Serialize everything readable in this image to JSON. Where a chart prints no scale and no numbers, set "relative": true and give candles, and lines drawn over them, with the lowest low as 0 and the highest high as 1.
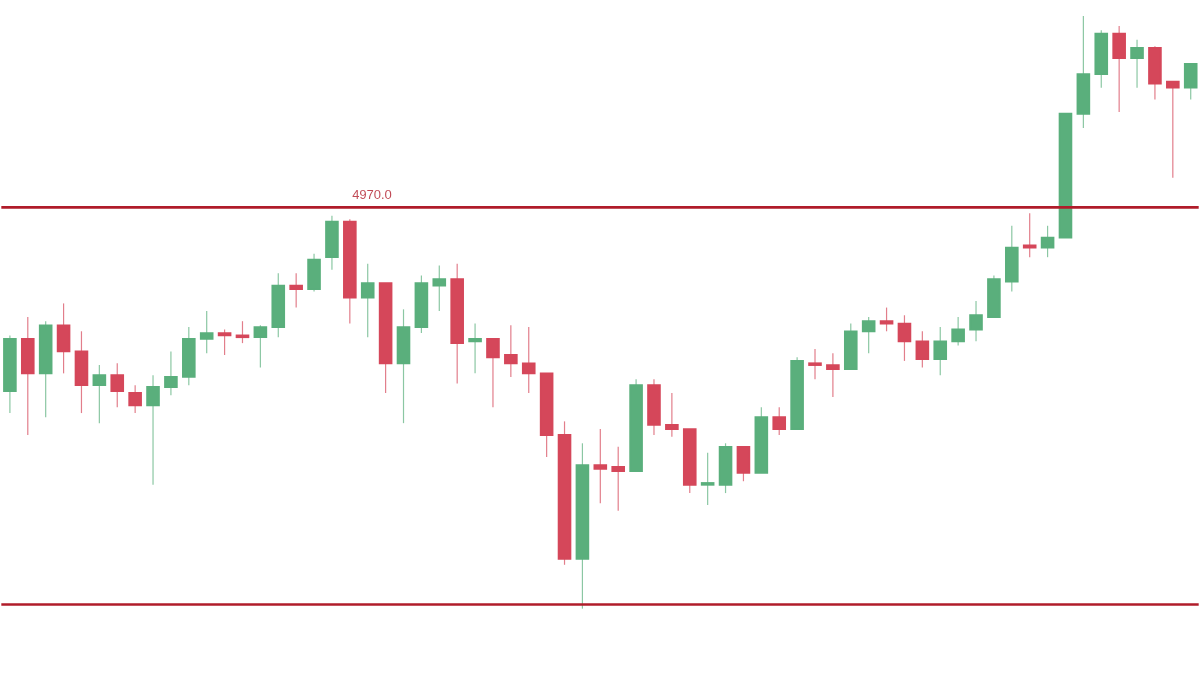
{
  "chart_data": {
    "type": "candlestick",
    "relative": true,
    "categories": [
      null,
      null,
      null,
      null,
      null,
      null,
      null,
      null,
      null,
      null,
      null,
      null,
      null,
      null,
      null,
      null,
      null,
      null,
      null,
      null,
      null,
      null,
      null,
      null,
      null,
      null,
      null,
      null,
      null,
      null,
      null,
      null,
      null,
      null,
      null,
      null,
      null,
      null,
      null,
      null,
      null,
      null,
      null,
      null,
      null,
      null,
      null,
      null,
      null,
      null,
      null,
      null,
      null,
      null,
      null,
      null,
      null,
      null,
      null,
      null,
      null,
      null,
      null,
      null,
      null,
      null,
      null
    ],
    "ohlc": [
      [
        0.367,
        0.461,
        0.33,
        0.455
      ],
      [
        0.455,
        0.492,
        0.293,
        0.397
      ],
      [
        0.397,
        0.485,
        0.323,
        0.478
      ],
      [
        0.478,
        0.515,
        0.397,
        0.434
      ],
      [
        0.434,
        0.468,
        0.33,
        0.377
      ],
      [
        0.377,
        0.411,
        0.313,
        0.394
      ],
      [
        0.394,
        0.414,
        0.34,
        0.367
      ],
      [
        0.364,
        0.377,
        0.33,
        0.343
      ],
      [
        0.343,
        0.394,
        0.209,
        0.374
      ],
      [
        0.374,
        0.434,
        0.36,
        0.391
      ],
      [
        0.391,
        0.475,
        0.377,
        0.455
      ],
      [
        0.455,
        0.502,
        0.431,
        0.465
      ],
      [
        0.465,
        0.471,
        0.428,
        0.461
      ],
      [
        0.461,
        0.485,
        0.448,
        0.458
      ],
      [
        0.458,
        0.478,
        0.407,
        0.475
      ],
      [
        0.475,
        0.566,
        0.458,
        0.545
      ],
      [
        0.545,
        0.566,
        0.508,
        0.539
      ],
      [
        0.539,
        0.599,
        0.535,
        0.589
      ],
      [
        0.593,
        0.663,
        0.572,
        0.653
      ],
      [
        0.653,
        0.657,
        0.481,
        0.525
      ],
      [
        0.525,
        0.582,
        0.458,
        0.549
      ],
      [
        0.549,
        0.549,
        0.364,
        0.414
      ],
      [
        0.414,
        0.505,
        0.313,
        0.475
      ],
      [
        0.475,
        0.562,
        0.465,
        0.549
      ],
      [
        0.545,
        0.579,
        0.502,
        0.556
      ],
      [
        0.556,
        0.582,
        0.38,
        0.448
      ],
      [
        0.451,
        0.481,
        0.397,
        0.455
      ],
      [
        0.455,
        0.455,
        0.34,
        0.424
      ],
      [
        0.428,
        0.478,
        0.391,
        0.414
      ],
      [
        0.414,
        0.475,
        0.364,
        0.397
      ],
      [
        0.397,
        0.397,
        0.256,
        0.293
      ],
      [
        0.293,
        0.316,
        0.074,
        0.084
      ],
      [
        0.084,
        0.279,
        0,
        0.242
      ],
      [
        0.242,
        0.303,
        0.178,
        0.236
      ],
      [
        0.239,
        0.273,
        0.165,
        0.232
      ],
      [
        0.232,
        0.387,
        0.232,
        0.377
      ],
      [
        0.377,
        0.387,
        0.293,
        0.31
      ],
      [
        0.31,
        0.364,
        0.29,
        0.303
      ],
      [
        0.303,
        0.303,
        0.195,
        0.209
      ],
      [
        0.209,
        0.263,
        0.175,
        0.212
      ],
      [
        0.209,
        0.279,
        0.195,
        0.273
      ],
      [
        0.273,
        0.273,
        0.215,
        0.229
      ],
      [
        0.229,
        0.34,
        0.229,
        0.323
      ],
      [
        0.323,
        0.34,
        0.293,
        0.303
      ],
      [
        0.303,
        0.424,
        0.303,
        0.418
      ],
      [
        0.414,
        0.438,
        0.387,
        0.411
      ],
      [
        0.411,
        0.431,
        0.357,
        0.404
      ],
      [
        0.404,
        0.481,
        0.404,
        0.468
      ],
      [
        0.468,
        0.492,
        0.431,
        0.485
      ],
      [
        0.485,
        0.508,
        0.468,
        0.481
      ],
      [
        0.481,
        0.495,
        0.418,
        0.451
      ],
      [
        0.451,
        0.468,
        0.407,
        0.421
      ],
      [
        0.421,
        0.475,
        0.394,
        0.451
      ],
      [
        0.451,
        0.492,
        0.444,
        0.471
      ],
      [
        0.471,
        0.519,
        0.451,
        0.495
      ],
      [
        0.492,
        0.562,
        0.492,
        0.556
      ],
      [
        0.552,
        0.646,
        0.535,
        0.609
      ],
      [
        0.613,
        0.667,
        0.593,
        0.609
      ],
      [
        0.609,
        0.646,
        0.593,
        0.626
      ],
      [
        0.626,
        0.835,
        0.626,
        0.835
      ],
      [
        0.835,
        1.0,
        0.811,
        0.902
      ],
      [
        0.902,
        0.976,
        0.879,
        0.97
      ],
      [
        0.97,
        0.983,
        0.838,
        0.929
      ],
      [
        0.929,
        0.96,
        0.879,
        0.946
      ],
      [
        0.946,
        0.949,
        0.859,
        0.886
      ],
      [
        0.889,
        0.889,
        0.727,
        0.879
      ],
      [
        0.879,
        0.919,
        0.859,
        0.919
      ]
    ],
    "colors": [
      "#5aaf7c",
      "#d5475a",
      "#5aaf7c",
      "#d5475a",
      "#d5475a",
      "#5aaf7c",
      "#d5475a",
      "#d5475a",
      "#5aaf7c",
      "#5aaf7c",
      "#5aaf7c",
      "#5aaf7c",
      "#d5475a",
      "#d5475a",
      "#5aaf7c",
      "#5aaf7c",
      "#d5475a",
      "#5aaf7c",
      "#5aaf7c",
      "#d5475a",
      "#5aaf7c",
      "#d5475a",
      "#5aaf7c",
      "#5aaf7c",
      "#5aaf7c",
      "#d5475a",
      "#5aaf7c",
      "#d5475a",
      "#d5475a",
      "#d5475a",
      "#d5475a",
      "#d5475a",
      "#5aaf7c",
      "#d5475a",
      "#d5475a",
      "#5aaf7c",
      "#d5475a",
      "#d5475a",
      "#d5475a",
      "#5aaf7c",
      "#5aaf7c",
      "#d5475a",
      "#5aaf7c",
      "#d5475a",
      "#5aaf7c",
      "#d5475a",
      "#d5475a",
      "#5aaf7c",
      "#5aaf7c",
      "#d5475a",
      "#d5475a",
      "#d5475a",
      "#5aaf7c",
      "#5aaf7c",
      "#5aaf7c",
      "#5aaf7c",
      "#5aaf7c",
      "#d5475a",
      "#5aaf7c",
      "#5aaf7c",
      "#5aaf7c",
      "#5aaf7c",
      "#d5475a",
      "#5aaf7c",
      "#d5475a",
      "#d5475a",
      "#5aaf7c"
    ],
    "annotations": [
      "4970.0"
    ],
    "ref_lines": [
      {
        "axis": "y",
        "value": 0.677,
        "color": "#b01c2a"
      },
      {
        "axis": "y",
        "value": 0.007,
        "color": "#b01c2a"
      }
    ]
  }
}
